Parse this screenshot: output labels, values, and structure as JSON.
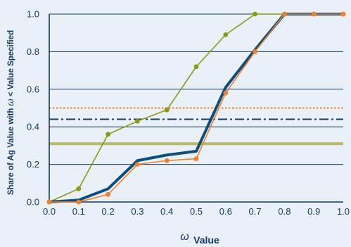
{
  "chart_data": {
    "type": "line",
    "xlabel_symbol": "ω",
    "xlabel_text": "Value",
    "ylabel_prefix": "Share of Ag Value with ",
    "ylabel_symbol": "ω",
    "ylabel_suffix": " < Value Specified",
    "x_ticks": [
      "0.0",
      "0.1",
      "0.2",
      "0.3",
      "0.4",
      "0.5",
      "0.6",
      "0.7",
      "0.8",
      "0.9",
      "1.0"
    ],
    "y_ticks": [
      "0.0",
      "0.2",
      "0.4",
      "0.6",
      "0.8",
      "1.0"
    ],
    "xlim": [
      0,
      1
    ],
    "ylim": [
      0,
      1
    ],
    "grid": "horizontal",
    "x": [
      0.0,
      0.1,
      0.2,
      0.3,
      0.4,
      0.5,
      0.6,
      0.7,
      0.8,
      0.9,
      1.0
    ],
    "series": [
      {
        "color": "#8a9a12",
        "style": "thin-line-with-markers",
        "values": [
          0.0,
          0.07,
          0.36,
          0.43,
          0.49,
          0.72,
          0.89,
          1.0,
          1.0,
          1.0,
          1.0
        ]
      },
      {
        "color": "#0d4e7a",
        "style": "thick-line",
        "x": [
          0.0,
          0.1,
          0.2,
          0.3,
          0.4,
          0.5,
          0.6,
          0.7,
          0.8,
          1.0
        ],
        "values": [
          0.0,
          0.01,
          0.07,
          0.22,
          0.25,
          0.27,
          0.61,
          0.81,
          1.0,
          1.0
        ]
      },
      {
        "color": "#f07f2c",
        "style": "thin-line-with-markers",
        "values": [
          0.0,
          0.0,
          0.04,
          0.2,
          0.22,
          0.23,
          0.58,
          0.8,
          1.0,
          1.0,
          1.0
        ]
      }
    ],
    "reference_lines": [
      {
        "value": 0.5,
        "color": "#f07f2c",
        "style": "dotted"
      },
      {
        "value": 0.44,
        "color": "#123b63",
        "style": "dash-dot"
      },
      {
        "value": 0.31,
        "color": "#b8b86a",
        "style": "solid-thick"
      }
    ]
  }
}
